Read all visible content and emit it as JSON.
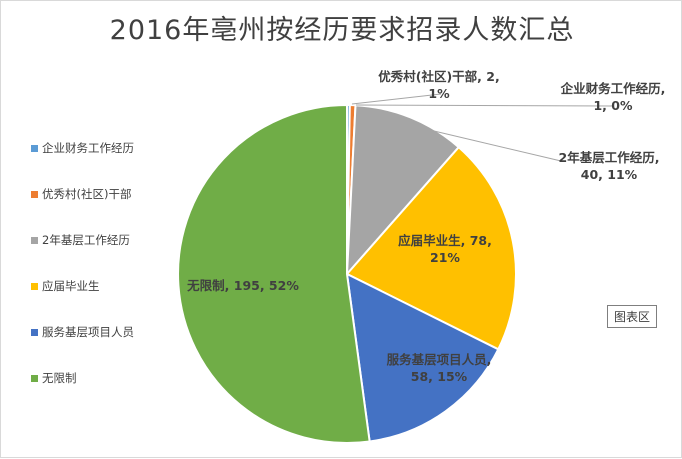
{
  "chart_data": {
    "type": "pie",
    "title": "2016年亳州按经历要求招录人数汇总",
    "slices": [
      {
        "name": "企业财务工作经历",
        "value": 1,
        "percent": "0%",
        "color": "#5b9bd5",
        "label_lines": [
          "企业财务工作经历,",
          "1, 0%"
        ]
      },
      {
        "name": "优秀村(社区)干部",
        "value": 2,
        "percent": "1%",
        "color": "#ed7d31",
        "label_lines": [
          "优秀村(社区)干部, 2,",
          "1%"
        ]
      },
      {
        "name": "2年基层工作经历",
        "value": 40,
        "percent": "11%",
        "color": "#a5a5a5",
        "label_lines": [
          "2年基层工作经历,",
          "40, 11%"
        ]
      },
      {
        "name": "应届毕业生",
        "value": 78,
        "percent": "21%",
        "color": "#ffc000",
        "label_lines": [
          "应届毕业生, 78,",
          "21%"
        ]
      },
      {
        "name": "服务基层项目人员",
        "value": 58,
        "percent": "15%",
        "color": "#4472c4",
        "label_lines": [
          "服务基层项目人员,",
          "58, 15%"
        ]
      },
      {
        "name": "无限制",
        "value": 195,
        "percent": "52%",
        "color": "#70ad47",
        "label_lines": [
          "无限制, 195, 52%"
        ]
      }
    ]
  },
  "tooltip": {
    "label": "图表区"
  }
}
